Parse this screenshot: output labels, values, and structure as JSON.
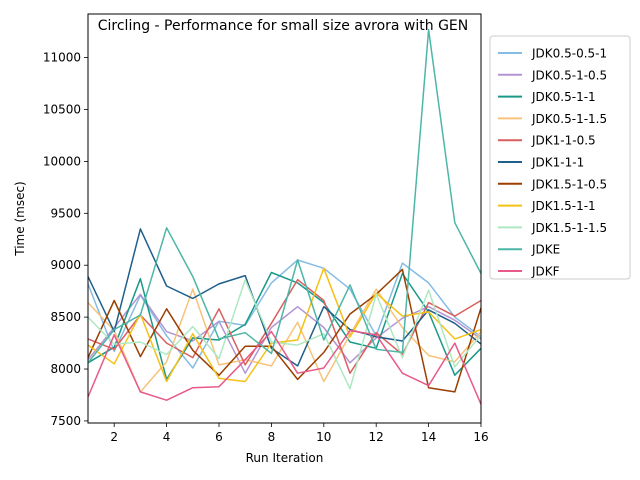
{
  "chart_data": {
    "type": "line",
    "title": "Circling - Performance for small size avrora with GEN",
    "xlabel": "Run Iteration",
    "ylabel": "Time (msec)",
    "xlim": [
      1,
      16
    ],
    "ylim": [
      7480,
      11420
    ],
    "x_ticks": [
      2,
      4,
      6,
      8,
      10,
      12,
      14,
      16
    ],
    "y_ticks": [
      7500,
      8000,
      8500,
      9000,
      9500,
      10000,
      10500,
      11000
    ],
    "grid": false,
    "legend_position": "outside-right",
    "x": [
      1,
      2,
      3,
      4,
      5,
      6,
      7,
      8,
      9,
      10,
      11,
      12,
      13,
      14,
      15,
      16
    ],
    "series": [
      {
        "name": "JDK0.5-0.5-1",
        "color": "#85bce5",
        "values": [
          8820,
          8170,
          8710,
          8320,
          8010,
          8460,
          8420,
          8830,
          9050,
          8970,
          8770,
          8320,
          9020,
          8830,
          8500,
          8310
        ]
      },
      {
        "name": "JDK0.5-1-0.5",
        "color": "#b494d4",
        "values": [
          8090,
          8400,
          8720,
          8360,
          8270,
          8460,
          7960,
          8400,
          8600,
          8400,
          8060,
          8300,
          8490,
          8600,
          8470,
          8290
        ]
      },
      {
        "name": "JDK0.5-1-1",
        "color": "#1a9988",
        "values": [
          8060,
          8210,
          8870,
          7900,
          8300,
          8280,
          8430,
          8930,
          8830,
          8640,
          8260,
          8200,
          8920,
          8550,
          7940,
          8200
        ]
      },
      {
        "name": "JDK0.5-1-1.5",
        "color": "#f9c27a",
        "values": [
          8640,
          8370,
          7780,
          8070,
          8770,
          8040,
          8090,
          8030,
          8450,
          7880,
          8330,
          8770,
          8400,
          8130,
          8070,
          8360
        ]
      },
      {
        "name": "JDK1-1-0.5",
        "color": "#d95f5f",
        "values": [
          8290,
          8190,
          8520,
          8250,
          8110,
          8580,
          8040,
          8440,
          8860,
          8660,
          7960,
          8350,
          8140,
          8640,
          8510,
          8660
        ]
      },
      {
        "name": "JDK1-1-1",
        "color": "#1f5f8b",
        "values": [
          8890,
          8360,
          9350,
          8800,
          8680,
          8820,
          8900,
          8200,
          8030,
          8600,
          8380,
          8310,
          8270,
          8570,
          8440,
          8240
        ]
      },
      {
        "name": "JDK1.5-1-0.5",
        "color": "#9b3e00",
        "values": [
          8110,
          8660,
          8120,
          8580,
          8180,
          7940,
          8220,
          8220,
          7900,
          8160,
          8530,
          8720,
          8960,
          7820,
          7780,
          8590
        ]
      },
      {
        "name": "JDK1.5-1-1",
        "color": "#f5c116",
        "values": [
          8230,
          8050,
          8530,
          7880,
          8340,
          7910,
          7880,
          8250,
          8280,
          8970,
          8310,
          8730,
          8510,
          8550,
          8290,
          8380
        ]
      },
      {
        "name": "JDK1.5-1-1.5",
        "color": "#aee8c2",
        "values": [
          8500,
          8240,
          8260,
          8140,
          8410,
          8100,
          8860,
          8260,
          8230,
          8340,
          7810,
          8720,
          8110,
          8760,
          8020,
          8330
        ]
      },
      {
        "name": "JDKE",
        "color": "#4db6a7",
        "values": [
          8060,
          8380,
          8520,
          9360,
          8890,
          8290,
          8350,
          8150,
          9050,
          8280,
          8810,
          8190,
          8160,
          11270,
          9410,
          8920
        ]
      },
      {
        "name": "JDKF",
        "color": "#e8598a",
        "values": [
          7730,
          8330,
          7780,
          7700,
          7820,
          7830,
          8090,
          8360,
          7960,
          8010,
          8370,
          8330,
          7960,
          7840,
          8250,
          7660
        ]
      }
    ]
  }
}
